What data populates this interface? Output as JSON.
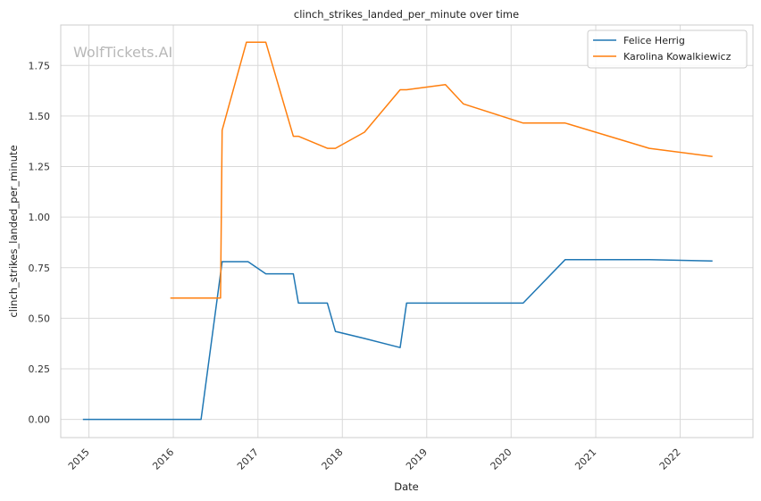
{
  "watermark": "WolfTickets.AI",
  "chart_data": {
    "type": "line",
    "title": "clinch_strikes_landed_per_minute over time",
    "xlabel": "Date",
    "ylabel": "clinch_strikes_landed_per_minute",
    "xlim": [
      "2014-09-01",
      "2022-11-12"
    ],
    "ylim": [
      -0.09,
      1.95
    ],
    "x_ticks": [
      "2015",
      "2016",
      "2017",
      "2018",
      "2019",
      "2020",
      "2021",
      "2022"
    ],
    "y_ticks": [
      "0.00",
      "0.25",
      "0.50",
      "0.75",
      "1.00",
      "1.25",
      "1.50",
      "1.75"
    ],
    "grid": true,
    "legend_position": "top-right",
    "series": [
      {
        "name": "Felice Herrig",
        "color": "#1f77b4",
        "points": [
          [
            "2014-12-06",
            0.0
          ],
          [
            "2015-12-10",
            0.0
          ],
          [
            "2016-04-30",
            0.0
          ],
          [
            "2016-07-30",
            0.78
          ],
          [
            "2016-11-19",
            0.78
          ],
          [
            "2017-02-04",
            0.72
          ],
          [
            "2017-06-03",
            0.72
          ],
          [
            "2017-06-25",
            0.575
          ],
          [
            "2017-10-28",
            0.575
          ],
          [
            "2017-12-02",
            0.435
          ],
          [
            "2018-04-07",
            0.4
          ],
          [
            "2018-09-08",
            0.355
          ],
          [
            "2018-10-06",
            0.575
          ],
          [
            "2019-03-23",
            0.575
          ],
          [
            "2020-02-22",
            0.575
          ],
          [
            "2020-08-22",
            0.79
          ],
          [
            "2021-08-21",
            0.79
          ],
          [
            "2022-05-21",
            0.783
          ]
        ]
      },
      {
        "name": "Karolina Kowalkiewicz",
        "color": "#ff7f0e",
        "points": [
          [
            "2015-12-19",
            0.6
          ],
          [
            "2016-04-30",
            0.6
          ],
          [
            "2016-07-23",
            0.6
          ],
          [
            "2016-07-30",
            1.43
          ],
          [
            "2016-11-12",
            1.865
          ],
          [
            "2017-02-04",
            1.865
          ],
          [
            "2017-06-03",
            1.4
          ],
          [
            "2017-06-25",
            1.4
          ],
          [
            "2017-10-28",
            1.34
          ],
          [
            "2017-12-02",
            1.34
          ],
          [
            "2018-04-07",
            1.42
          ],
          [
            "2018-09-08",
            1.63
          ],
          [
            "2018-10-06",
            1.63
          ],
          [
            "2019-03-23",
            1.655
          ],
          [
            "2019-06-08",
            1.56
          ],
          [
            "2020-02-22",
            1.465
          ],
          [
            "2020-08-22",
            1.465
          ],
          [
            "2021-08-21",
            1.34
          ],
          [
            "2022-05-21",
            1.3
          ]
        ]
      }
    ]
  }
}
